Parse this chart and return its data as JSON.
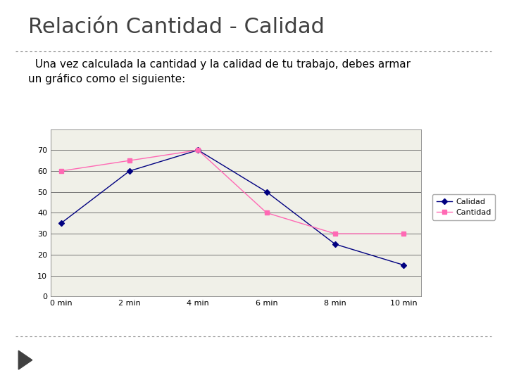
{
  "title": "Relación Cantidad - Calidad",
  "subtitle_line1": "  Una vez calculada la cantidad y la calidad de tu trabajo, debes armar",
  "subtitle_line2": "un gráfico como el siguiente:",
  "x_labels": [
    "0 min",
    "2 min",
    "4 min",
    "6 min",
    "8 min",
    "10 min"
  ],
  "x_values": [
    0,
    2,
    4,
    6,
    8,
    10
  ],
  "calidad_values": [
    35,
    60,
    70,
    50,
    25,
    15
  ],
  "cantidad_values": [
    60,
    65,
    70,
    40,
    30,
    30
  ],
  "calidad_color": "#000080",
  "cantidad_color": "#FF69B4",
  "bg_color": "#FFFFFF",
  "plot_bg_color": "#F0F0E8",
  "ylim": [
    0,
    80
  ],
  "yticks": [
    0,
    10,
    20,
    30,
    40,
    50,
    60,
    70
  ],
  "legend_calidad": "Calidad",
  "legend_cantidad": "Cantidad",
  "title_fontsize": 22,
  "subtitle_fontsize": 11,
  "axis_label_fontsize": 8,
  "legend_fontsize": 8
}
